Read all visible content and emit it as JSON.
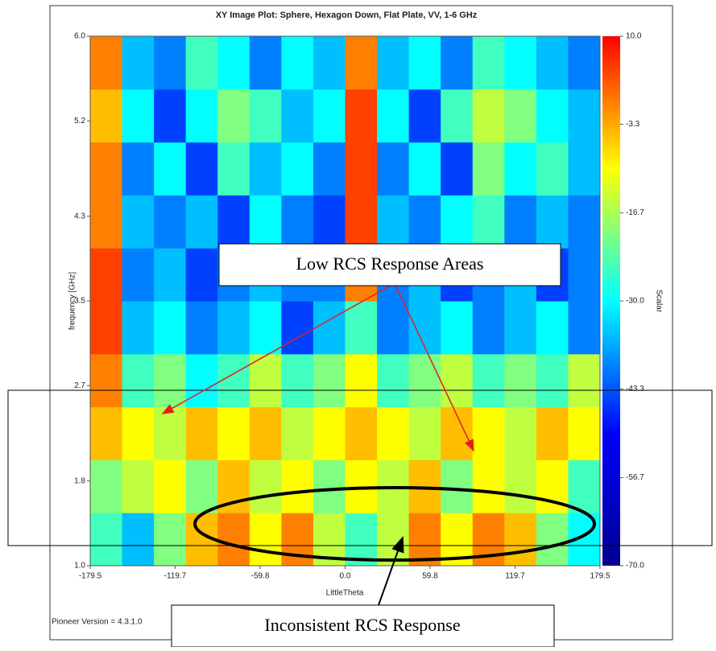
{
  "chart_data": {
    "type": "heatmap",
    "title": "XY Image Plot: Sphere, Hexagon Down, Flat Plate, VV, 1-6 GHz",
    "x_label": "LittleTheta",
    "y_label": "frequency [GHz]",
    "colorbar_label": "Scalar",
    "footer": "Pioneer Version = 4.3.1.0",
    "xlim": [
      -179.5,
      179.5
    ],
    "xticks": [
      -179.5,
      -119.7,
      -59.8,
      {
        "value": 0,
        "label": "0.0"
      },
      59.8,
      119.7,
      179.5
    ],
    "ylim": [
      1,
      6
    ],
    "yticks": [
      {
        "value": 1,
        "label": "1.0"
      },
      1.8,
      2.7,
      3.5,
      4.3,
      5.2,
      {
        "value": 6,
        "label": "6.0"
      }
    ],
    "clim": [
      -70,
      10
    ],
    "cticks": [
      {
        "value": 10,
        "label": "10.0"
      },
      -3.3,
      -16.7,
      {
        "value": -30,
        "label": "-30.0"
      },
      -43.3,
      -56.7,
      {
        "value": -70,
        "label": "-70.0"
      }
    ],
    "colormap": [
      "#00008f",
      "#0000ff",
      "#00ffff",
      "#ffff00",
      "#ff0000"
    ],
    "z": [
      [
        -25,
        -35,
        -20,
        -5,
        0,
        -10,
        0,
        -15,
        -25,
        -15,
        0,
        -10,
        0,
        -5,
        -20,
        -30
      ],
      [
        -20,
        -15,
        -10,
        -20,
        -5,
        -15,
        -10,
        -20,
        -10,
        -15,
        -5,
        -20,
        -10,
        -15,
        -10,
        -25
      ],
      [
        -5,
        -10,
        -15,
        -5,
        -10,
        -5,
        -15,
        -10,
        -5,
        -10,
        -15,
        -5,
        -10,
        -15,
        -5,
        -10
      ],
      [
        0,
        -25,
        -20,
        -30,
        -25,
        -15,
        -25,
        -20,
        -10,
        -25,
        -20,
        -15,
        -25,
        -20,
        -25,
        -15
      ],
      [
        5,
        -35,
        -30,
        -40,
        -35,
        -30,
        -45,
        -35,
        -25,
        -40,
        -35,
        -30,
        -40,
        -35,
        -30,
        -40
      ],
      [
        5,
        -40,
        -35,
        -45,
        -40,
        -35,
        -40,
        -40,
        0,
        -40,
        -35,
        -45,
        -40,
        -35,
        -45,
        -40
      ],
      [
        0,
        -35,
        -40,
        -35,
        -45,
        -30,
        -40,
        -45,
        5,
        -35,
        -40,
        -30,
        -25,
        -40,
        -35,
        -40
      ],
      [
        0,
        -40,
        -30,
        -45,
        -25,
        -35,
        -30,
        -40,
        5,
        -40,
        -30,
        -45,
        -20,
        -30,
        -25,
        -35
      ],
      [
        -5,
        -30,
        -45,
        -30,
        -20,
        -25,
        -35,
        -30,
        5,
        -30,
        -45,
        -25,
        -15,
        -20,
        -30,
        -35
      ],
      [
        0,
        -35,
        -40,
        -25,
        -30,
        -40,
        -30,
        -35,
        0,
        -35,
        -30,
        -40,
        -25,
        -30,
        -35,
        -40
      ]
    ]
  },
  "annotations": {
    "low": "Low RCS Response Areas",
    "inconsistent": "Inconsistent RCS Response"
  }
}
